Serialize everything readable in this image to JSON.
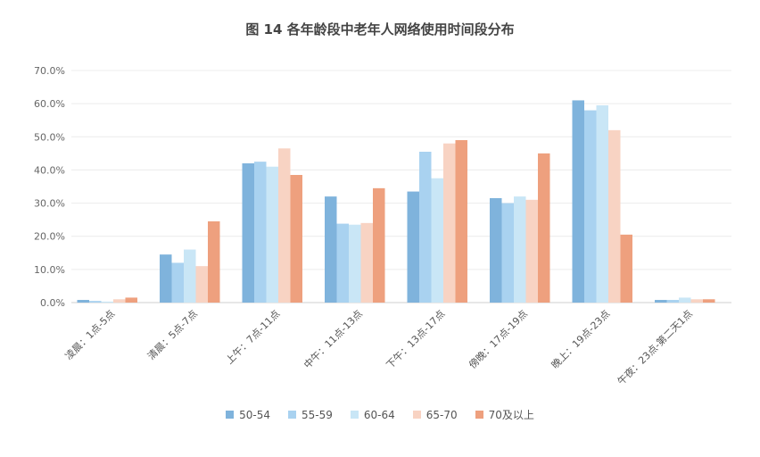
{
  "chart_data": {
    "type": "bar",
    "title": "图 14  各年龄段中老年人网络使用时间段分布",
    "categories": [
      "凌晨：1点-5点",
      "清晨：5点-7点",
      "上午：7点-11点",
      "中午：11点-13点",
      "下午：13点-17点",
      "傍晚：17点-19点",
      "晚上：19点-23点",
      "午夜：23点-第二天1点"
    ],
    "y_ticks": [
      "0.0%",
      "10.0%",
      "20.0%",
      "30.0%",
      "40.0%",
      "50.0%",
      "60.0%",
      "70.0%"
    ],
    "ylim": [
      0,
      70
    ],
    "grid": true,
    "legend_position": "bottom",
    "series": [
      {
        "name": "50-54",
        "color": "#7fb3dc",
        "values": [
          0.8,
          14.5,
          42.0,
          32.0,
          33.5,
          31.5,
          61.0,
          0.8
        ]
      },
      {
        "name": "55-59",
        "color": "#a9d2f0",
        "values": [
          0.5,
          12.0,
          42.5,
          23.8,
          45.5,
          30.0,
          58.0,
          0.8
        ]
      },
      {
        "name": "60-64",
        "color": "#c9e6f6",
        "values": [
          0.3,
          16.0,
          41.0,
          23.5,
          37.5,
          32.0,
          59.5,
          1.5
        ]
      },
      {
        "name": "65-70",
        "color": "#f8d3c3",
        "values": [
          1.0,
          11.0,
          46.5,
          24.0,
          48.0,
          31.0,
          52.0,
          1.0
        ]
      },
      {
        "name": "70及以上",
        "color": "#eea07e",
        "values": [
          1.5,
          24.5,
          38.5,
          34.5,
          49.0,
          45.0,
          20.5,
          1.0
        ]
      }
    ]
  }
}
